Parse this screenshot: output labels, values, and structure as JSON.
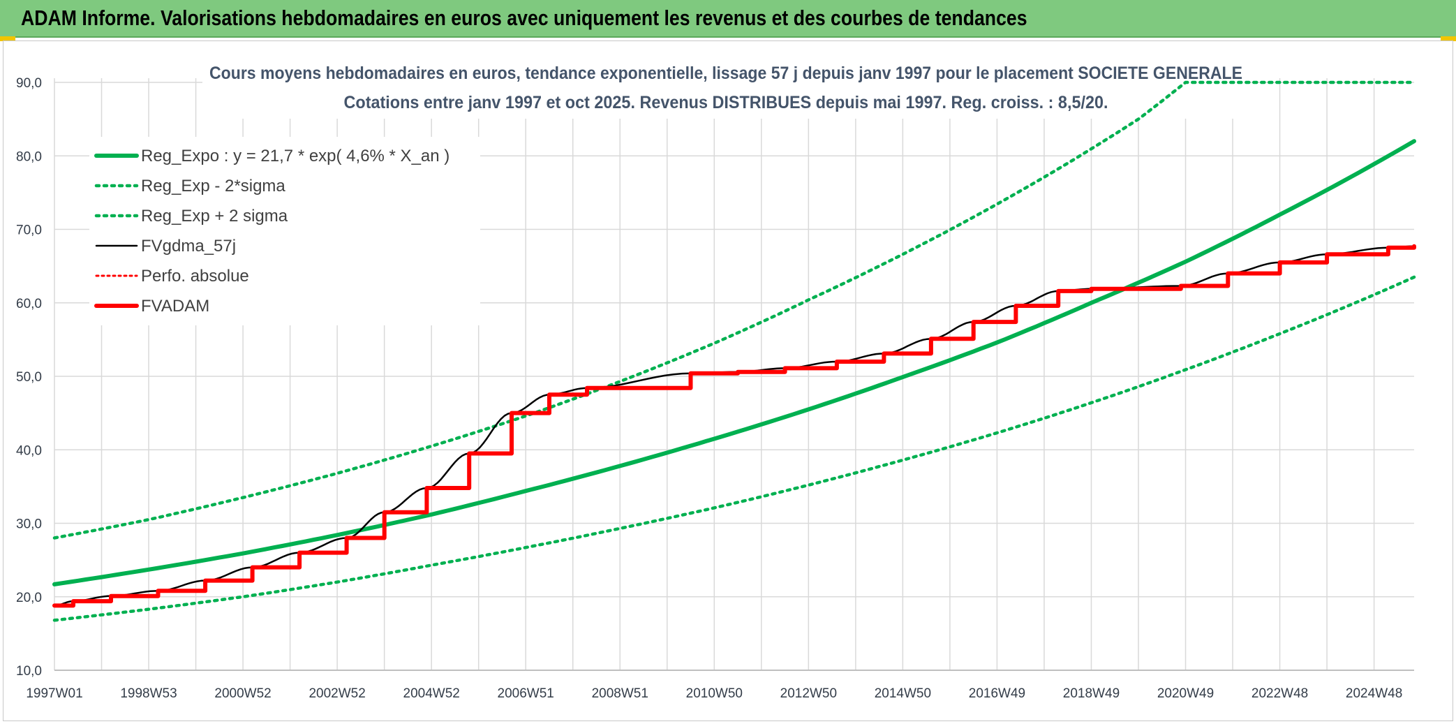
{
  "header": {
    "title": "ADAM Informe. Valorisations hebdomadaires en euros avec uniquement les revenus et des courbes de tendances"
  },
  "chart_data": {
    "type": "line",
    "title_line1": "Cours moyens hebdomadaires en euros, tendance exponentielle, lissage 57 j depuis janv 1997 pour le placement SOCIETE GENERALE",
    "title_line2": "Cotations entre janv 1997 et oct 2025. Revenus DISTRIBUES depuis mai 1997. Reg. croiss. : 8,5/20.",
    "xlabel": "",
    "ylabel": "",
    "ylim": [
      10,
      90
    ],
    "y_ticks": [
      "10,0",
      "20,0",
      "30,0",
      "40,0",
      "50,0",
      "60,0",
      "70,0",
      "80,0",
      "90,0"
    ],
    "x_range": [
      1997.0,
      2025.85
    ],
    "x_ticks": [
      {
        "x": 1997.0,
        "label": "1997W01"
      },
      {
        "x": 1999.0,
        "label": "1998W53"
      },
      {
        "x": 2001.0,
        "label": "2000W52"
      },
      {
        "x": 2003.0,
        "label": "2002W52"
      },
      {
        "x": 2005.0,
        "label": "2004W52"
      },
      {
        "x": 2007.0,
        "label": "2006W51"
      },
      {
        "x": 2009.0,
        "label": "2008W51"
      },
      {
        "x": 2011.0,
        "label": "2010W50"
      },
      {
        "x": 2013.0,
        "label": "2012W50"
      },
      {
        "x": 2015.0,
        "label": "2014W50"
      },
      {
        "x": 2017.0,
        "label": "2016W49"
      },
      {
        "x": 2019.0,
        "label": "2018W49"
      },
      {
        "x": 2021.0,
        "label": "2020W49"
      },
      {
        "x": 2023.0,
        "label": "2022W48"
      },
      {
        "x": 2025.0,
        "label": "2024W48"
      }
    ],
    "grid": true,
    "legend_position": "top-left",
    "colors": {
      "trend": "#00b050",
      "smooth": "#000000",
      "adam": "#ff0000",
      "grid": "#d9d9d9"
    },
    "series": [
      {
        "name": "Reg_Expo : y = 21,7 * exp( 4,6% *  X_an )",
        "style": "solid-green",
        "x": [
          1997,
          1999,
          2001,
          2003,
          2005,
          2007,
          2009,
          2011,
          2013,
          2015,
          2017,
          2019,
          2021,
          2023,
          2025.85
        ],
        "values": [
          21.7,
          23.7,
          25.9,
          28.4,
          31.2,
          34.4,
          37.8,
          41.5,
          45.5,
          49.9,
          54.6,
          60.0,
          65.6,
          72.0,
          82.0
        ]
      },
      {
        "name": "Reg_Exp - 2*sigma",
        "style": "dotted-green",
        "x": [
          1997,
          1999,
          2001,
          2003,
          2005,
          2007,
          2009,
          2011,
          2013,
          2015,
          2017,
          2019,
          2021,
          2023,
          2025.85
        ],
        "values": [
          16.8,
          18.3,
          20.0,
          22.0,
          24.3,
          26.7,
          29.3,
          32.1,
          35.2,
          38.6,
          42.3,
          46.4,
          50.9,
          55.8,
          63.5
        ]
      },
      {
        "name": "Reg_Exp + 2 sigma",
        "style": "dotted-green",
        "x": [
          1997,
          1999,
          2001,
          2003,
          2005,
          2007,
          2009,
          2011,
          2013,
          2014.5,
          2020,
          2021,
          2023,
          2025.85
        ],
        "values": [
          28.0,
          30.5,
          33.5,
          36.8,
          40.5,
          44.6,
          49.3,
          54.5,
          60.4,
          65.0,
          85.0,
          90.0,
          90.0,
          90.0
        ]
      },
      {
        "name": "FVgdma_57j",
        "style": "solid-black",
        "x": [
          1997.0,
          1997.4,
          1998.2,
          1999.2,
          2000.2,
          2001.2,
          2002.2,
          2003.2,
          2004.0,
          2004.9,
          2005.8,
          2006.7,
          2007.5,
          2008.3,
          2010.5,
          2011.5,
          2012.5,
          2013.6,
          2014.6,
          2015.6,
          2016.5,
          2017.4,
          2018.3,
          2019.0,
          2020.9,
          2021.9,
          2023.0,
          2024.0,
          2025.3,
          2025.85
        ],
        "values": [
          18.8,
          19.4,
          20.1,
          20.8,
          22.2,
          24.0,
          26.0,
          28.0,
          31.5,
          34.8,
          39.5,
          45.0,
          47.5,
          48.4,
          50.4,
          50.6,
          51.1,
          52.0,
          53.1,
          55.1,
          57.4,
          59.6,
          61.6,
          61.9,
          62.3,
          64.0,
          65.5,
          66.6,
          67.5,
          67.7
        ]
      },
      {
        "name": "Perfo. absolue",
        "style": "dotted-red",
        "x": [],
        "values": []
      },
      {
        "name": "FVADAM",
        "style": "step-red",
        "x": [
          1997.0,
          1997.4,
          1998.2,
          1999.2,
          2000.2,
          2001.2,
          2002.2,
          2003.2,
          2004.0,
          2004.9,
          2005.8,
          2006.7,
          2007.5,
          2008.3,
          2010.5,
          2011.5,
          2012.5,
          2013.6,
          2014.6,
          2015.6,
          2016.5,
          2017.4,
          2018.3,
          2019.0,
          2020.9,
          2021.9,
          2023.0,
          2024.0,
          2025.3,
          2025.85
        ],
        "values": [
          18.8,
          19.4,
          20.1,
          20.8,
          22.2,
          24.0,
          26.0,
          28.0,
          31.5,
          34.8,
          39.5,
          45.0,
          47.5,
          48.4,
          50.4,
          50.6,
          51.1,
          52.0,
          53.1,
          55.1,
          57.4,
          59.6,
          61.6,
          61.9,
          62.3,
          64.0,
          65.5,
          66.6,
          67.5,
          67.7
        ]
      }
    ]
  }
}
